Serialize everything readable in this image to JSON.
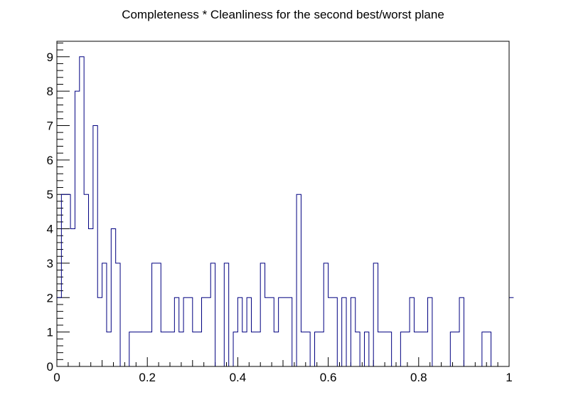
{
  "chart_data": {
    "type": "histogram",
    "title": "Completeness * Cleanliness for the second best/worst plane",
    "xlabel": "",
    "ylabel": "",
    "xlim": [
      0,
      1
    ],
    "ylim": [
      0,
      9.45
    ],
    "bin_width": 0.01,
    "bin_counts": [
      2,
      5,
      5,
      4,
      8,
      9,
      5,
      4,
      7,
      2,
      3,
      1,
      4,
      3,
      0,
      0,
      1,
      1,
      1,
      1,
      1,
      3,
      3,
      1,
      1,
      1,
      2,
      1,
      2,
      2,
      1,
      1,
      2,
      2,
      3,
      0,
      0,
      3,
      0,
      1,
      2,
      1,
      2,
      1,
      1,
      3,
      2,
      2,
      1,
      2,
      2,
      2,
      0,
      5,
      1,
      1,
      0,
      1,
      1,
      3,
      2,
      2,
      0,
      2,
      0,
      2,
      1,
      0,
      1,
      0,
      3,
      1,
      1,
      1,
      0,
      0,
      1,
      1,
      2,
      1,
      1,
      1,
      2,
      0,
      0,
      0,
      0,
      1,
      1,
      2,
      0,
      0,
      0,
      0,
      1,
      1,
      0,
      0,
      0,
      0,
      2
    ],
    "x_ticks": [
      "0",
      "0.2",
      "0.4",
      "0.6",
      "0.8",
      "1"
    ],
    "y_ticks": [
      "0",
      "1",
      "2",
      "3",
      "4",
      "5",
      "6",
      "7",
      "8",
      "9"
    ],
    "line_color": "#000080",
    "frame_color": "#000000"
  }
}
